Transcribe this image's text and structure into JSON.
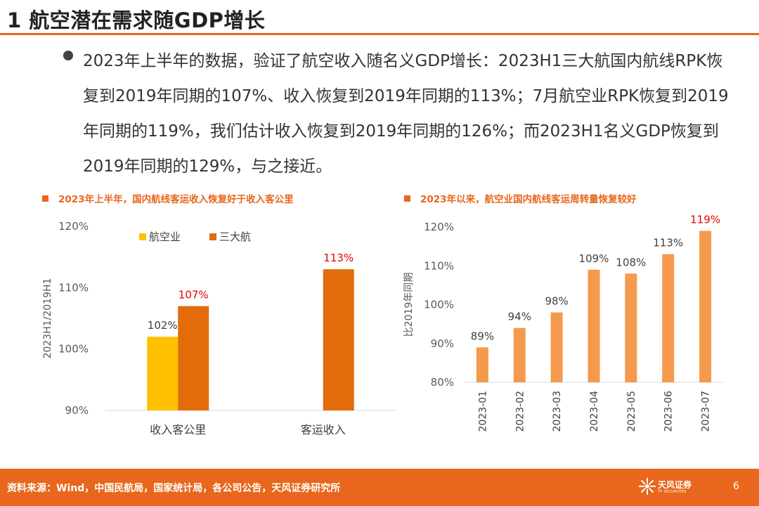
{
  "slide": {
    "title": "1 航空潜在需求随GDP增长",
    "bullet": "2023年上半年的数据，验证了航空收入随名义GDP增长：2023H1三大航国内航线RPK恢复到2019年同期的107%、收入恢复到2019年同期的113%；7月航空业RPK恢复到2019年同期的119%，我们估计收入恢复到2019年同期的126%；而2023H1名义GDP恢复到2019年同期的129%，与之接近。"
  },
  "footer": {
    "source": "资料来源：Wind，中国民航局，国家统计局，各公司公告，天风证券研究所",
    "logo_name": "天风证券",
    "logo_sub": "TF SECURITIES",
    "page_number": "6"
  },
  "colors": {
    "accent": "#e8671c",
    "industry": "#ffc000",
    "big_three": "#e26b0a",
    "monthly_bar": "#f59a4c",
    "highlight_label": "#e60000"
  },
  "chart_data": [
    {
      "type": "bar",
      "title": "2023年上半年，国内航线客运收入恢复好于收入客公里",
      "ylabel": "2023H1/2019H1",
      "categories": [
        "收入客公里",
        "客运收入"
      ],
      "series": [
        {
          "name": "航空业",
          "values": [
            102,
            null
          ],
          "data_labels": [
            "102%",
            ""
          ]
        },
        {
          "name": "三大航",
          "values": [
            107,
            113
          ],
          "data_labels": [
            "107%",
            "113%"
          ]
        }
      ],
      "ylim": [
        90,
        120
      ],
      "yticks": [
        "90%",
        "100%",
        "110%",
        "120%"
      ],
      "legend": "top-left",
      "grid": false
    },
    {
      "type": "bar",
      "title": "2023年以来，航空业国内航线客运周转量恢复较好",
      "ylabel": "比2019年同期",
      "categories": [
        "2023-01",
        "2023-02",
        "2023-03",
        "2023-04",
        "2023-05",
        "2023-06",
        "2023-07"
      ],
      "values": [
        89,
        94,
        98,
        109,
        108,
        113,
        119
      ],
      "data_labels": [
        "89%",
        "94%",
        "98%",
        "109%",
        "108%",
        "113%",
        "119%"
      ],
      "ylim": [
        80,
        120
      ],
      "yticks": [
        "80%",
        "90%",
        "100%",
        "110%",
        "120%"
      ],
      "grid": false
    }
  ]
}
